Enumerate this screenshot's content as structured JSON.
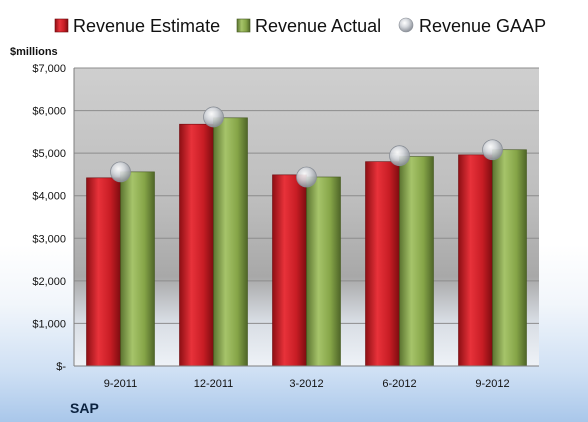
{
  "chart_data": {
    "type": "bar",
    "title": "",
    "ylabel": "$millions",
    "xlabel": "",
    "company": "SAP",
    "categories": [
      "9-2011",
      "12-2011",
      "3-2012",
      "6-2012",
      "9-2012"
    ],
    "ylim": [
      0,
      7000
    ],
    "yticks": [
      0,
      1000,
      2000,
      3000,
      4000,
      5000,
      6000,
      7000
    ],
    "ytick_labels": [
      "$-",
      "$1,000",
      "$2,000",
      "$3,000",
      "$4,000",
      "$5,000",
      "$6,000",
      "$7,000"
    ],
    "grid": true,
    "legend_position": "top",
    "series": [
      {
        "name": "Revenue Estimate",
        "kind": "bar",
        "color": "#d41f2a",
        "values": [
          4420,
          5680,
          4490,
          4800,
          4960
        ]
      },
      {
        "name": "Revenue Actual",
        "kind": "bar",
        "color": "#8fae4e",
        "values": [
          4560,
          5830,
          4440,
          4920,
          5080
        ]
      },
      {
        "name": "Revenue GAAP",
        "kind": "marker",
        "color": "#b8bcc4",
        "values": [
          4560,
          5850,
          4440,
          4940,
          5080
        ]
      }
    ]
  }
}
